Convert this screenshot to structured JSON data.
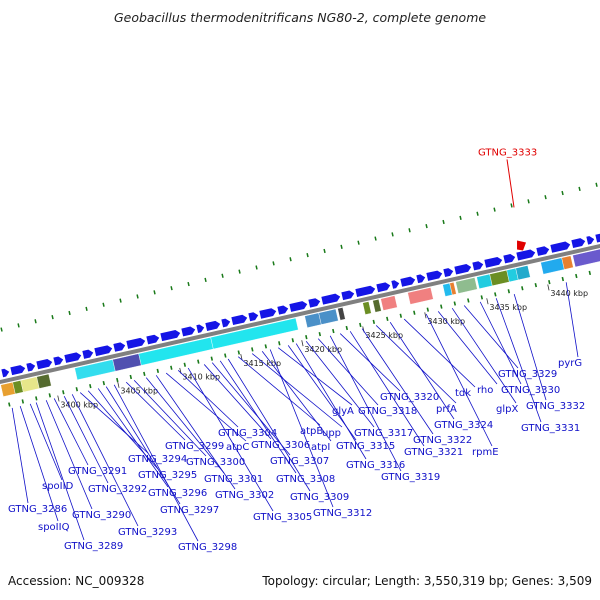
{
  "title": "Geobacillus thermodenitrificans NG80-2, complete genome",
  "footer": {
    "accession": "Accession: NC_009328",
    "stats": "Topology: circular; Length: 3,550,319 bp; Genes: 3,509"
  },
  "highlight": {
    "name": "GTNG_3333"
  },
  "kbp_ticks": [
    "3400 kbp",
    "3405 kbp",
    "3410 kbp",
    "3415 kbp",
    "3420 kbp",
    "3425 kbp",
    "3430 kbp",
    "3435 kbp",
    "3440 kbp"
  ],
  "gene_labels": [
    "GTNG_3286",
    "spoIIQ",
    "spoIID",
    "GTNG_3289",
    "GTNG_3290",
    "GTNG_3291",
    "GTNG_3292",
    "GTNG_3293",
    "GTNG_3294",
    "GTNG_3295",
    "GTNG_3296",
    "GTNG_3297",
    "GTNG_3298",
    "GTNG_3299",
    "GTNG_3300",
    "GTNG_3301",
    "GTNG_3302",
    "atpC",
    "GTNG_3304",
    "GTNG_3305",
    "GTNG_3306",
    "GTNG_3307",
    "GTNG_3308",
    "GTNG_3309",
    "atpB",
    "upp",
    "atpI",
    "GTNG_3312",
    "glyA",
    "GTNG_3315",
    "GTNG_3316",
    "GTNG_3317",
    "GTNG_3318",
    "GTNG_3319",
    "GTNG_3320",
    "GTNG_3321",
    "GTNG_3322",
    "prfA",
    "GTNG_3324",
    "tdk",
    "rpmE",
    "rho",
    "glpX",
    "GTNG_3329",
    "GTNG_3330",
    "GTNG_3331",
    "GTNG_3332",
    "pyrG"
  ],
  "colors": {
    "gene_forward": "#1515e6",
    "backbone": "#808080",
    "label": "#1010c8",
    "tick": "#1a7a1a",
    "highlight": "#e00000"
  }
}
